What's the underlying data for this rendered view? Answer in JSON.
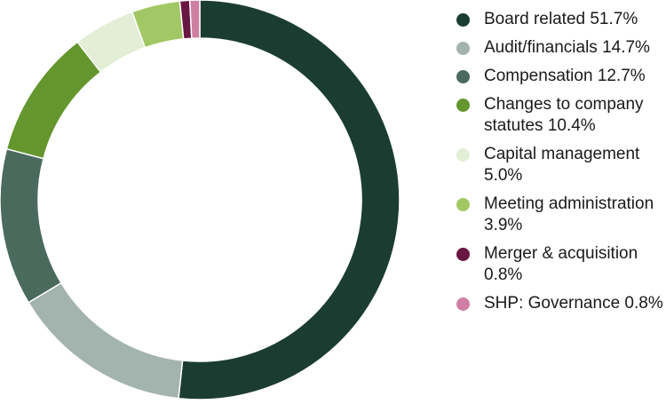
{
  "chart_data": {
    "type": "pie",
    "variant": "donut",
    "title": "",
    "legend_position": "right",
    "slices": [
      {
        "label": "Board related",
        "value": 51.7,
        "value_label": "51.7%",
        "color": "#1b3d31"
      },
      {
        "label": "Audit/financials",
        "value": 14.7,
        "value_label": "14.7%",
        "color": "#a3b3ad"
      },
      {
        "label": "Compensation",
        "value": 12.7,
        "value_label": "12.7%",
        "color": "#4a6a5e"
      },
      {
        "label": "Changes to company statutes",
        "value": 10.4,
        "value_label": "10.4%",
        "color": "#65962e"
      },
      {
        "label": "Capital management",
        "value": 5.0,
        "value_label": "5.0%",
        "color": "#e2eed5"
      },
      {
        "label": "Meeting administration",
        "value": 3.9,
        "value_label": "3.9%",
        "color": "#a2c865"
      },
      {
        "label": "Merger & acquisition",
        "value": 0.8,
        "value_label": "0.8%",
        "color": "#6a1642"
      },
      {
        "label": "SHP: Governance",
        "value": 0.8,
        "value_label": "0.8%",
        "color": "#cf7fa2"
      }
    ]
  }
}
